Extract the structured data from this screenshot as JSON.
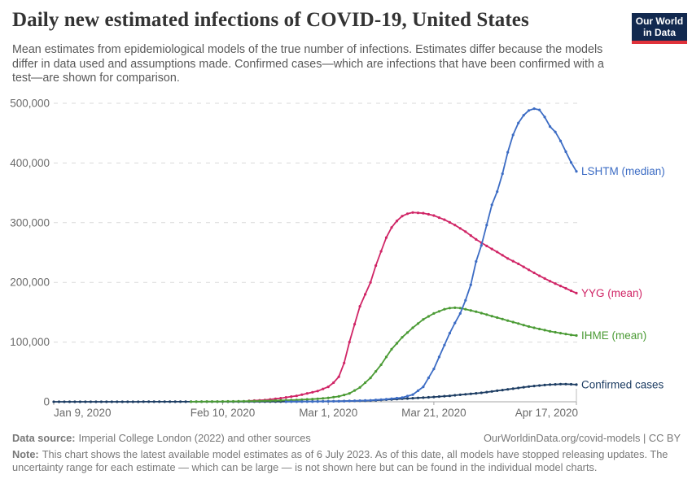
{
  "header": {
    "title": "Daily new estimated infections of COVID-19, United States",
    "subtitle": "Mean estimates from epidemiological models of the true number of infections. Estimates differ because the models differ in data used and assumptions made. Confirmed cases—which are infections that have been confirmed with a test—are shown for comparison.",
    "logo": {
      "line1": "Our World",
      "line2": "in Data",
      "bg_color": "#12294f",
      "accent_color": "#e0323b"
    }
  },
  "footer": {
    "source": {
      "label": "Data source:",
      "text": "Imperial College London (2022) and other sources"
    },
    "link": "OurWorldinData.org/covid-models | CC BY",
    "note": {
      "label": "Note:",
      "text": "This chart shows the latest available model estimates as of 6 July 2023. As of this date, all models have stopped releasing updates. The uncertainty range for each estimate — which can be large — is not shown here but can be found in the individual model charts."
    }
  },
  "chart_data": {
    "type": "line",
    "title": "Daily new estimated infections of COVID-19, United States",
    "xlabel": "",
    "ylabel": "",
    "grid": "dashed horizontal",
    "x_unit": "days since Jan 9, 2020",
    "xlim_days": [
      0,
      99
    ],
    "ylim": [
      0,
      500000
    ],
    "x_axis": {
      "tick_days": [
        0,
        32,
        52,
        72,
        99
      ],
      "tick_labels": [
        "Jan 9, 2020",
        "Feb 10, 2020",
        "Mar 1, 2020",
        "Mar 21, 2020",
        "Apr 17, 2020"
      ]
    },
    "y_axis": {
      "ticks": [
        0,
        100000,
        200000,
        300000,
        400000,
        500000
      ],
      "tick_labels": [
        "0",
        "100,000",
        "200,000",
        "300,000",
        "400,000",
        "500,000"
      ]
    },
    "legend_position": "right end-of-line labels",
    "series": [
      {
        "name": "Confirmed cases",
        "color": "#1d3d63",
        "points": [
          [
            0,
            0
          ],
          [
            10,
            0
          ],
          [
            20,
            100
          ],
          [
            30,
            150
          ],
          [
            40,
            250
          ],
          [
            45,
            350
          ],
          [
            50,
            600
          ],
          [
            54,
            1000
          ],
          [
            57,
            1500
          ],
          [
            60,
            2000
          ],
          [
            63,
            3500
          ],
          [
            66,
            5000
          ],
          [
            69,
            6500
          ],
          [
            72,
            8000
          ],
          [
            75,
            10000
          ],
          [
            78,
            12500
          ],
          [
            81,
            15000
          ],
          [
            84,
            18500
          ],
          [
            87,
            22000
          ],
          [
            90,
            25500
          ],
          [
            92,
            27300
          ],
          [
            94,
            28700
          ],
          [
            96,
            29500
          ],
          [
            97,
            29600
          ],
          [
            98,
            29300
          ],
          [
            99,
            28800
          ]
        ]
      },
      {
        "name": "YYG (mean)",
        "color": "#d02566",
        "points": [
          [
            37,
            1500
          ],
          [
            40,
            3000
          ],
          [
            43,
            6000
          ],
          [
            46,
            10000
          ],
          [
            48,
            14000
          ],
          [
            50,
            18000
          ],
          [
            52,
            25000
          ],
          [
            53,
            32000
          ],
          [
            54,
            42000
          ],
          [
            55,
            65000
          ],
          [
            56,
            100000
          ],
          [
            57,
            130000
          ],
          [
            58,
            160000
          ],
          [
            59,
            180000
          ],
          [
            60,
            200000
          ],
          [
            61,
            228000
          ],
          [
            62,
            252000
          ],
          [
            63,
            275000
          ],
          [
            64,
            292000
          ],
          [
            65,
            303000
          ],
          [
            66,
            311000
          ],
          [
            67,
            315000
          ],
          [
            68,
            317000
          ],
          [
            70,
            316000
          ],
          [
            72,
            312000
          ],
          [
            74,
            305000
          ],
          [
            76,
            296000
          ],
          [
            78,
            285000
          ],
          [
            80,
            272000
          ],
          [
            82,
            261000
          ],
          [
            84,
            251000
          ],
          [
            86,
            240000
          ],
          [
            88,
            231000
          ],
          [
            90,
            221000
          ],
          [
            92,
            211000
          ],
          [
            94,
            202000
          ],
          [
            96,
            194000
          ],
          [
            98,
            186000
          ],
          [
            99,
            182000
          ]
        ]
      },
      {
        "name": "IHME (mean)",
        "color": "#4b9b35",
        "points": [
          [
            26,
            200
          ],
          [
            30,
            400
          ],
          [
            34,
            700
          ],
          [
            38,
            1200
          ],
          [
            42,
            2000
          ],
          [
            46,
            3200
          ],
          [
            50,
            5000
          ],
          [
            52,
            6500
          ],
          [
            54,
            9000
          ],
          [
            56,
            14000
          ],
          [
            58,
            24000
          ],
          [
            60,
            40000
          ],
          [
            62,
            62000
          ],
          [
            64,
            88000
          ],
          [
            66,
            108000
          ],
          [
            68,
            124000
          ],
          [
            70,
            138000
          ],
          [
            72,
            148000
          ],
          [
            74,
            155000
          ],
          [
            75,
            157000
          ],
          [
            76,
            157500
          ],
          [
            77,
            157000
          ],
          [
            78,
            155000
          ],
          [
            80,
            151000
          ],
          [
            82,
            146000
          ],
          [
            84,
            141000
          ],
          [
            86,
            136000
          ],
          [
            88,
            131000
          ],
          [
            90,
            126000
          ],
          [
            92,
            122000
          ],
          [
            94,
            118000
          ],
          [
            96,
            115000
          ],
          [
            98,
            112000
          ],
          [
            99,
            111000
          ]
        ]
      },
      {
        "name": "LSHTM (median)",
        "color": "#3c6cc4",
        "points": [
          [
            44,
            200
          ],
          [
            48,
            400
          ],
          [
            52,
            700
          ],
          [
            56,
            1300
          ],
          [
            60,
            2500
          ],
          [
            63,
            4200
          ],
          [
            66,
            7000
          ],
          [
            68,
            12000
          ],
          [
            70,
            25000
          ],
          [
            72,
            55000
          ],
          [
            74,
            95000
          ],
          [
            75,
            115000
          ],
          [
            76,
            132000
          ],
          [
            77,
            148000
          ],
          [
            78,
            170000
          ],
          [
            79,
            196000
          ],
          [
            80,
            235000
          ],
          [
            81,
            262000
          ],
          [
            82,
            296000
          ],
          [
            83,
            330000
          ],
          [
            84,
            352000
          ],
          [
            85,
            382000
          ],
          [
            86,
            418000
          ],
          [
            87,
            447000
          ],
          [
            88,
            467000
          ],
          [
            89,
            480000
          ],
          [
            90,
            488000
          ],
          [
            91,
            491000
          ],
          [
            92,
            489000
          ],
          [
            93,
            477000
          ],
          [
            94,
            461000
          ],
          [
            95,
            452000
          ],
          [
            96,
            437000
          ],
          [
            97,
            419000
          ],
          [
            98,
            401000
          ],
          [
            99,
            386000
          ]
        ]
      }
    ],
    "style": {
      "gridline_color": "#dadada",
      "axis_color": "#a6a6a6",
      "tick_label_color": "#6b6b6b"
    }
  }
}
